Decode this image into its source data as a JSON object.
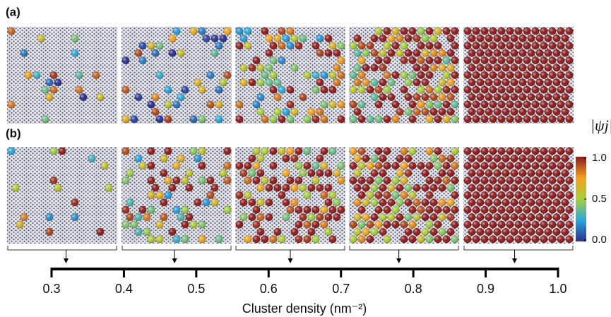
{
  "chart_data": {
    "type": "snapshots",
    "panel_labels": [
      "(a)",
      "(b)"
    ],
    "colorbar_label": "|ψj|",
    "colorbar_lim": [
      0,
      1
    ],
    "colorbar_ticks": [
      {
        "value": 0,
        "label": "0.0"
      },
      0.5,
      {
        "value": 1,
        "label": "1.0"
      }
    ],
    "xlabel": "Cluster density (nm⁻²)",
    "xlim": [
      0.3,
      1.0
    ],
    "xticks": [
      0.3,
      0.4,
      0.5,
      0.6,
      0.7,
      0.8,
      0.9,
      {
        "value": 1,
        "label": "1.0"
      }
    ],
    "snapshot_density": [
      0.32,
      0.47,
      0.63,
      0.78,
      0.94
    ]
  }
}
